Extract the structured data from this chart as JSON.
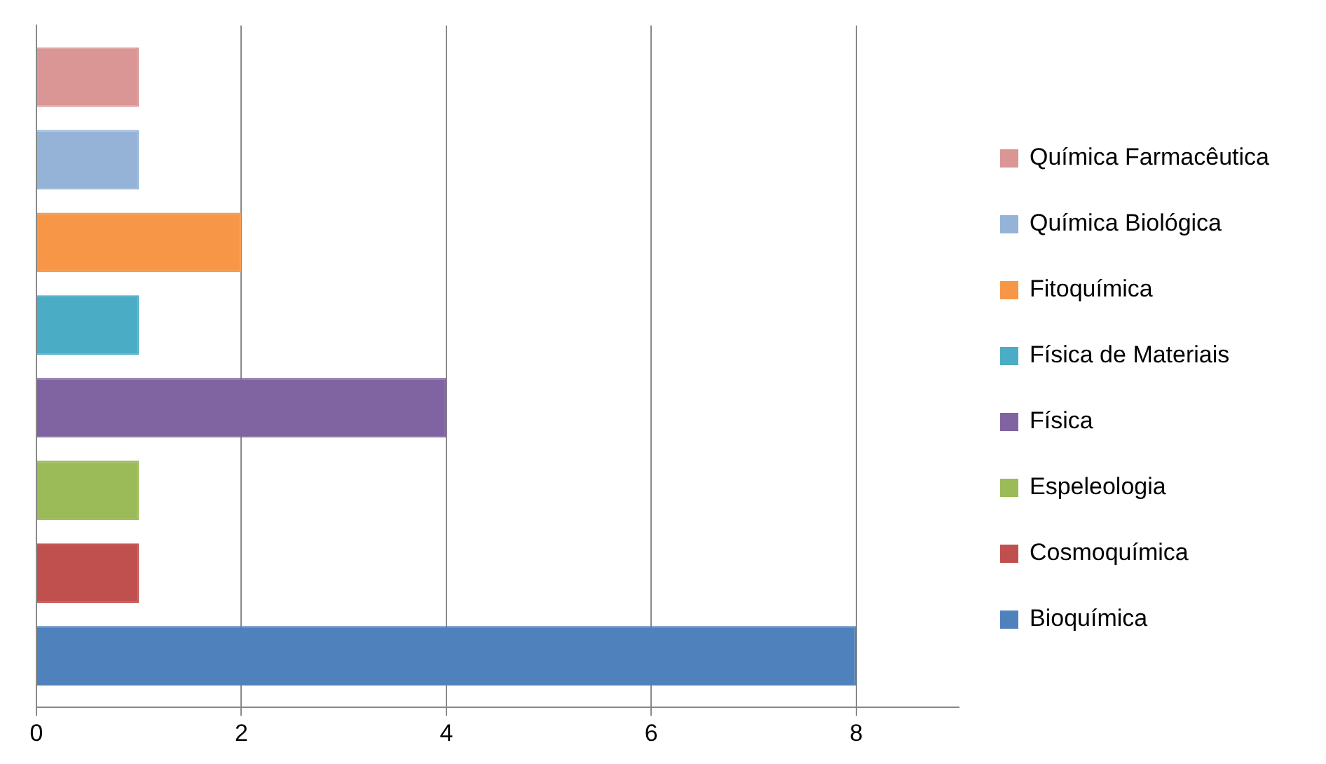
{
  "chart_data": {
    "type": "bar",
    "orientation": "horizontal",
    "categories": [
      null
    ],
    "series": [
      {
        "name": "Bioquímica",
        "color": "#4f81bd",
        "values": [
          8
        ]
      },
      {
        "name": "Cosmoquímica",
        "color": "#c0504d",
        "values": [
          1
        ]
      },
      {
        "name": "Espeleologia",
        "color": "#9bbb59",
        "values": [
          1
        ]
      },
      {
        "name": "Física",
        "color": "#8064a2",
        "values": [
          4
        ]
      },
      {
        "name": "Física de Materiais",
        "color": "#4bacc6",
        "values": [
          1
        ]
      },
      {
        "name": "Fitoquímica",
        "color": "#f79646",
        "values": [
          2
        ]
      },
      {
        "name": "Química Biológica",
        "color": "#95b3d7",
        "values": [
          1
        ]
      },
      {
        "name": "Química Farmacêutica",
        "color": "#d99694",
        "values": [
          1
        ]
      }
    ],
    "xlim": [
      0,
      9
    ],
    "xticks": [
      0,
      2,
      4,
      6,
      8
    ],
    "grid": "x",
    "legend": "right"
  }
}
